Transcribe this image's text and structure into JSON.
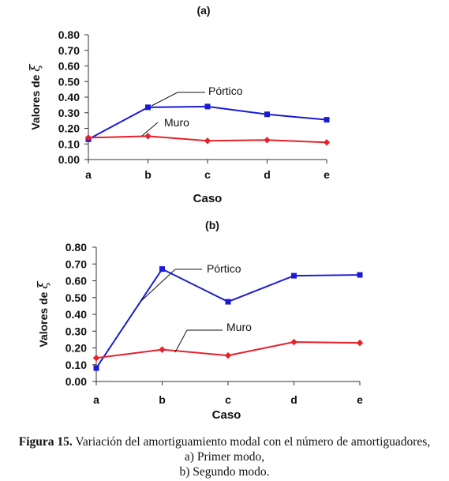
{
  "figure": {
    "caption_label": "Figura 15.",
    "caption_text": "Variación del amortiguamiento modal con el número de amortiguadores,",
    "caption_line2": "a) Primer modo,",
    "caption_line3": "b) Segundo modo."
  },
  "chart_data": [
    {
      "type": "line",
      "title": "(a)",
      "xlabel": "Caso",
      "ylabel": "Valores de ξ",
      "categories": [
        "a",
        "b",
        "c",
        "d",
        "e"
      ],
      "ylim": [
        0,
        0.8
      ],
      "yticks": [
        "0.00",
        "0.10",
        "0.20",
        "0.30",
        "0.40",
        "0.50",
        "0.60",
        "0.70",
        "0.80"
      ],
      "grid": false,
      "series": [
        {
          "name": "Pórtico",
          "color": "#1a1ad6",
          "marker": "square",
          "values": [
            0.13,
            0.335,
            0.34,
            0.29,
            0.255
          ]
        },
        {
          "name": "Muro",
          "color": "#e8202a",
          "marker": "diamond",
          "values": [
            0.14,
            0.15,
            0.12,
            0.125,
            0.11
          ]
        }
      ]
    },
    {
      "type": "line",
      "title": "(b)",
      "xlabel": "Caso",
      "ylabel": "Valores de ξ",
      "categories": [
        "a",
        "b",
        "c",
        "d",
        "e"
      ],
      "ylim": [
        0,
        0.8
      ],
      "yticks": [
        "0.00",
        "0.10",
        "0.20",
        "0.30",
        "0.40",
        "0.50",
        "0.60",
        "0.70",
        "0.80"
      ],
      "grid": false,
      "series": [
        {
          "name": "Pórtico",
          "color": "#1a1ad6",
          "marker": "square",
          "values": [
            0.08,
            0.67,
            0.475,
            0.63,
            0.635
          ]
        },
        {
          "name": "Muro",
          "color": "#e8202a",
          "marker": "diamond",
          "values": [
            0.14,
            0.19,
            0.155,
            0.235,
            0.23
          ]
        }
      ]
    }
  ]
}
